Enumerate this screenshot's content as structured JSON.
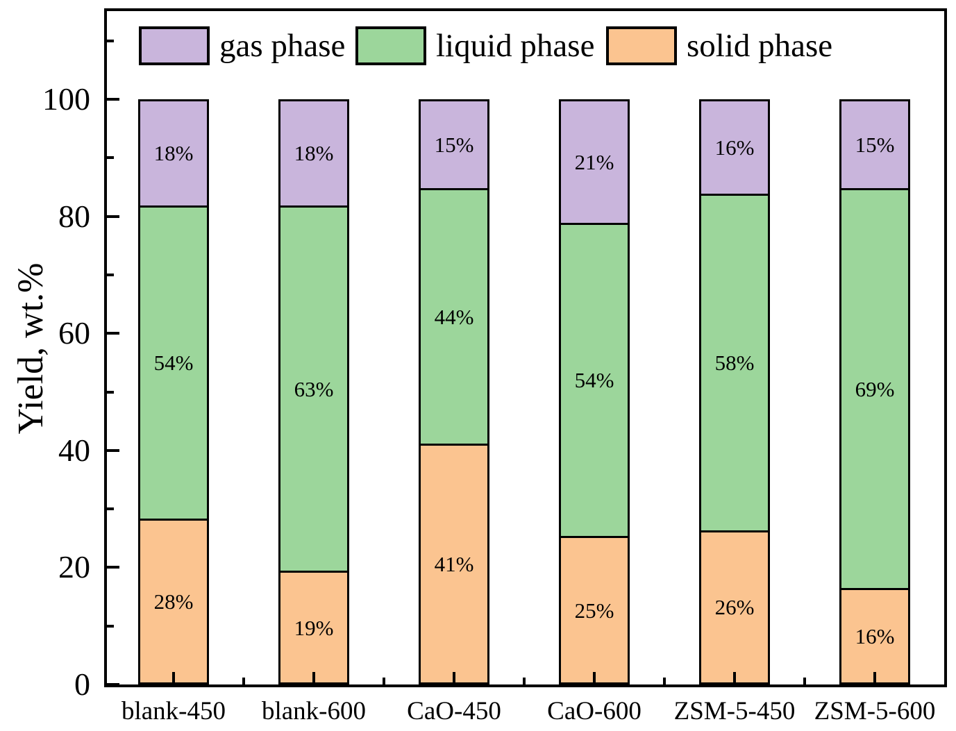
{
  "chart_data": {
    "type": "bar",
    "subtype": "stacked-vertical",
    "title": "",
    "xlabel": "",
    "ylabel": "Yield, wt.%",
    "ylim": [
      0,
      115
    ],
    "yticks_major": [
      0,
      20,
      40,
      60,
      80,
      100
    ],
    "yticks_minor": [
      10,
      30,
      50,
      70,
      90,
      110
    ],
    "grid": false,
    "value_label_suffix": "%",
    "categories": [
      "blank-450",
      "blank-600",
      "CaO-450",
      "CaO-600",
      "ZSM-5-450",
      "ZSM-5-600"
    ],
    "stack_order_bottom_to_top": [
      "solid phase",
      "liquid phase",
      "gas phase"
    ],
    "series": [
      {
        "name": "gas phase",
        "color": "#C9B5DC",
        "values": [
          18,
          18,
          15,
          21,
          16,
          15
        ]
      },
      {
        "name": "liquid phase",
        "color": "#9CD69B",
        "values": [
          54,
          63,
          44,
          54,
          58,
          69
        ]
      },
      {
        "name": "solid phase",
        "color": "#FBC490",
        "values": [
          28,
          19,
          41,
          25,
          26,
          16
        ]
      }
    ],
    "legend": {
      "position": "top-inside",
      "entries": [
        {
          "label": "gas phase",
          "color": "#C9B5DC"
        },
        {
          "label": "liquid phase",
          "color": "#9CD69B"
        },
        {
          "label": "solid phase",
          "color": "#FBC490"
        }
      ]
    },
    "colors": {
      "axis": "#000000",
      "background": "#FFFFFF",
      "bar_border": "#000000",
      "label_text": "#000000"
    }
  }
}
